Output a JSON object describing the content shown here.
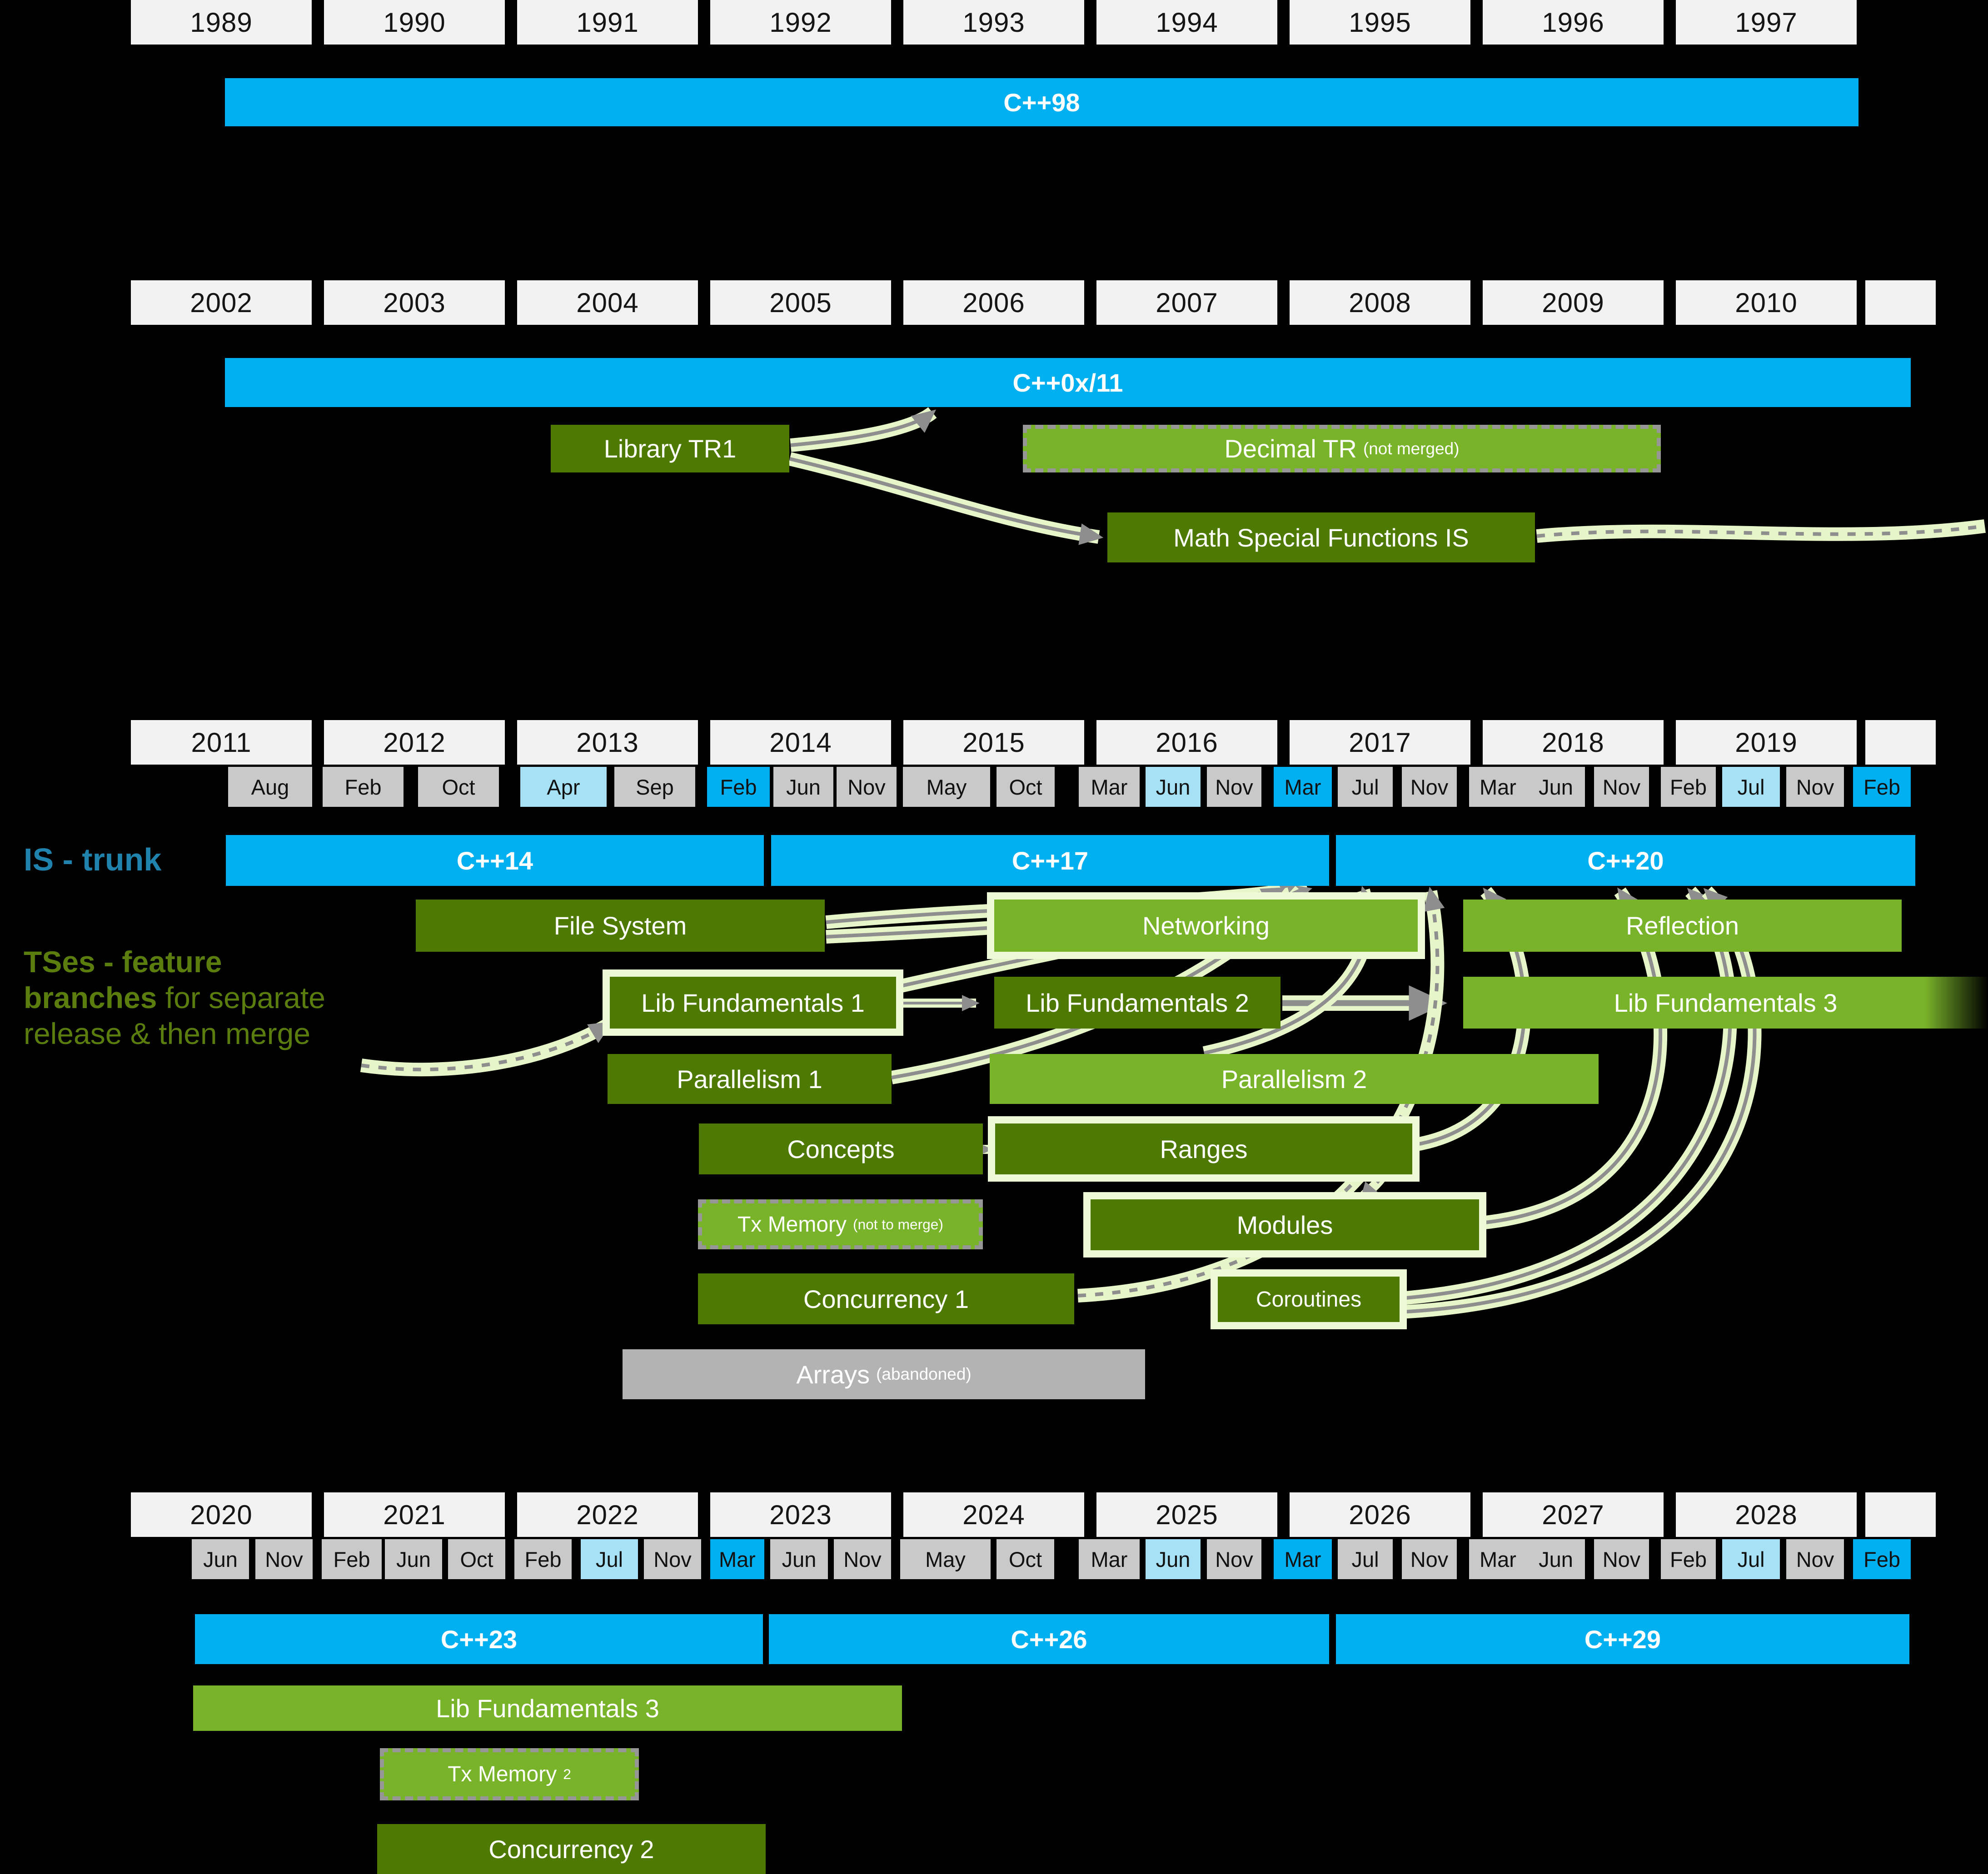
{
  "palette": {
    "background": "#000000",
    "is_blue": "#00b0f0",
    "year_bg": "#f2f2f2",
    "month_bg": "#c9c9c9",
    "month_milestone": "#a6e1f5",
    "month_release": "#00b0f0",
    "dark_green": "#4e7a04",
    "bright_green": "#79b32a",
    "abandoned_gray": "#b3b3b3",
    "trunk_label_color": "#1f83ad",
    "tses_text_color": "#5a7d0e",
    "arrow_band": "#e7f6c8",
    "arrow_core": "#8e8e8e"
  },
  "labels": {
    "is_trunk": "IS - trunk",
    "tses_bold": "TSes - feature branches",
    "tses_rest": " for separate release & then merge"
  },
  "year_rows": {
    "row1": [
      "1989",
      "1990",
      "1991",
      "1992",
      "1993",
      "1994",
      "1995",
      "1996",
      "1997"
    ],
    "row2": [
      "2002",
      "2003",
      "2004",
      "2005",
      "2006",
      "2007",
      "2008",
      "2009",
      "2010"
    ],
    "row3": [
      "2011",
      "2012",
      "2013",
      "2014",
      "2015",
      "2016",
      "2017",
      "2018",
      "2019"
    ],
    "row4": [
      "2020",
      "2021",
      "2022",
      "2023",
      "2024",
      "2025",
      "2026",
      "2027",
      "2028"
    ]
  },
  "month_rows": {
    "row3": [
      {
        "label": "Aug",
        "state": "plain"
      },
      {
        "label": "Feb",
        "state": "plain"
      },
      {
        "label": "Oct",
        "state": "plain"
      },
      {
        "label": "Apr",
        "state": "milestone"
      },
      {
        "label": "Sep",
        "state": "plain"
      },
      {
        "label": "Feb",
        "state": "release"
      },
      {
        "label": "Jun",
        "state": "plain"
      },
      {
        "label": "Nov",
        "state": "plain"
      },
      {
        "label": "May",
        "state": "plain"
      },
      {
        "label": "Oct",
        "state": "plain"
      },
      {
        "label": "Mar",
        "state": "plain"
      },
      {
        "label": "Jun",
        "state": "milestone"
      },
      {
        "label": "Nov",
        "state": "plain"
      },
      {
        "label": "Mar",
        "state": "release"
      },
      {
        "label": "Jul",
        "state": "plain"
      },
      {
        "label": "Nov",
        "state": "plain"
      },
      {
        "label": "Mar",
        "state": "plain"
      },
      {
        "label": "Jun",
        "state": "plain"
      },
      {
        "label": "Nov",
        "state": "plain"
      },
      {
        "label": "Feb",
        "state": "plain"
      },
      {
        "label": "Jul",
        "state": "milestone"
      },
      {
        "label": "Nov",
        "state": "plain"
      },
      {
        "label": "Feb",
        "state": "release"
      }
    ],
    "row4": [
      {
        "label": "Jun",
        "state": "plain"
      },
      {
        "label": "Nov",
        "state": "plain"
      },
      {
        "label": "Feb",
        "state": "plain"
      },
      {
        "label": "Jun",
        "state": "plain"
      },
      {
        "label": "Oct",
        "state": "plain"
      },
      {
        "label": "Feb",
        "state": "plain"
      },
      {
        "label": "Jul",
        "state": "milestone"
      },
      {
        "label": "Nov",
        "state": "plain"
      },
      {
        "label": "Mar",
        "state": "release"
      },
      {
        "label": "Jun",
        "state": "plain"
      },
      {
        "label": "Nov",
        "state": "plain"
      },
      {
        "label": "May",
        "state": "plain"
      },
      {
        "label": "Oct",
        "state": "plain"
      },
      {
        "label": "Mar",
        "state": "plain"
      },
      {
        "label": "Jun",
        "state": "milestone"
      },
      {
        "label": "Nov",
        "state": "plain"
      },
      {
        "label": "Mar",
        "state": "release"
      },
      {
        "label": "Jul",
        "state": "plain"
      },
      {
        "label": "Nov",
        "state": "plain"
      },
      {
        "label": "Mar",
        "state": "plain"
      },
      {
        "label": "Jun",
        "state": "plain"
      },
      {
        "label": "Nov",
        "state": "plain"
      },
      {
        "label": "Feb",
        "state": "plain"
      },
      {
        "label": "Jul",
        "state": "milestone"
      },
      {
        "label": "Nov",
        "state": "plain"
      },
      {
        "label": "Feb",
        "state": "release"
      }
    ]
  },
  "is_bars": {
    "cpp98": "C++98",
    "cpp0x11": "C++0x/11",
    "cpp14": "C++14",
    "cpp17": "C++17",
    "cpp20": "C++20",
    "cpp23": "C++23",
    "cpp26": "C++26",
    "cpp29": "C++29"
  },
  "ts_boxes": {
    "library_tr1": {
      "label": "Library TR1"
    },
    "decimal_tr": {
      "label": "Decimal TR",
      "sub": "(not merged)"
    },
    "math_sfi": {
      "label": "Math Special Functions IS"
    },
    "file_system": {
      "label": "File System"
    },
    "networking": {
      "label": "Networking"
    },
    "reflection": {
      "label": "Reflection"
    },
    "lib_fund_1": {
      "label": "Lib Fundamentals 1"
    },
    "lib_fund_2": {
      "label": "Lib Fundamentals 2"
    },
    "lib_fund_3": {
      "label": "Lib Fundamentals 3"
    },
    "parallelism_1": {
      "label": "Parallelism 1"
    },
    "parallelism_2": {
      "label": "Parallelism 2"
    },
    "concepts": {
      "label": "Concepts"
    },
    "ranges": {
      "label": "Ranges"
    },
    "tx_memory_1": {
      "label": "Tx Memory",
      "sub": "(not to merge)"
    },
    "modules": {
      "label": "Modules"
    },
    "concurrency_1": {
      "label": "Concurrency 1"
    },
    "coroutines": {
      "label": "Coroutines"
    },
    "arrays": {
      "label": "Arrays",
      "sub": "(abandoned)"
    },
    "lib_fund_3_bottom": {
      "label": "Lib Fundamentals 3"
    },
    "tx_memory_2": {
      "label": "Tx Memory",
      "sub": "2"
    },
    "concurrency_2": {
      "label": "Concurrency 2"
    }
  }
}
